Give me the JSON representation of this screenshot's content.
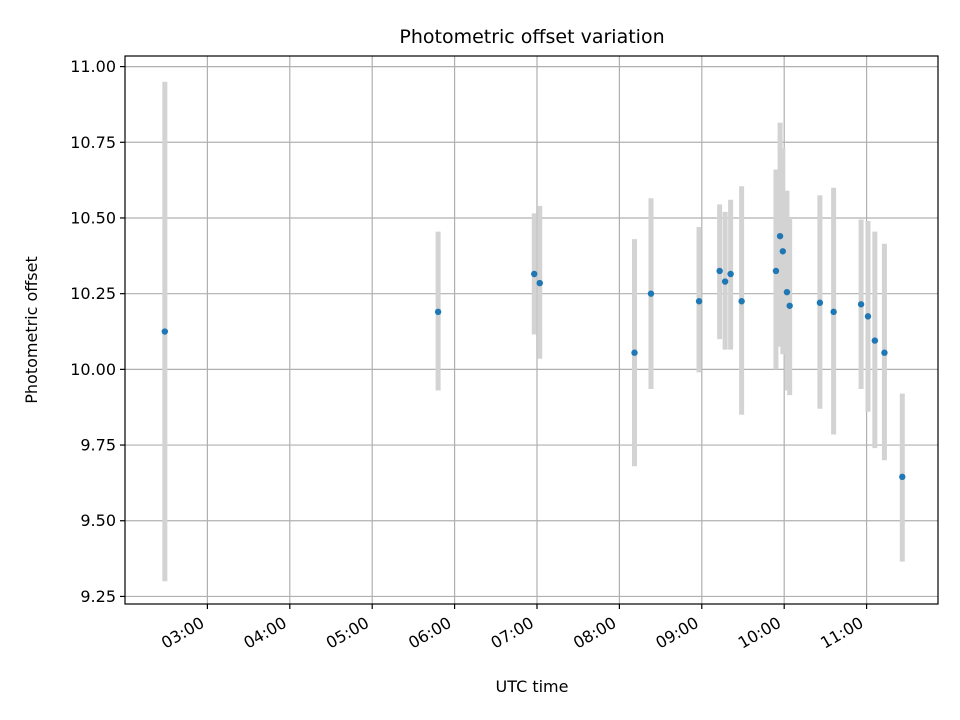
{
  "chart_data": {
    "type": "scatter",
    "title": "Photometric offset variation",
    "xlabel": "UTC time",
    "ylabel": "Photometric offset",
    "x_axis_type": "time",
    "xlim": [
      "02:00",
      "11:52"
    ],
    "ylim": [
      9.225,
      11.035
    ],
    "grid": true,
    "x_ticks": [
      "03:00",
      "04:00",
      "05:00",
      "06:00",
      "07:00",
      "08:00",
      "09:00",
      "10:00",
      "11:00"
    ],
    "y_ticks": [
      "9.25",
      "9.50",
      "9.75",
      "10.00",
      "10.25",
      "10.50",
      "10.75",
      "11.00"
    ],
    "colors": {
      "point": "#1f77b4",
      "errorbar": "#d3d3d3",
      "grid": "#b0b0b0"
    },
    "series": [
      {
        "points": [
          {
            "x": "02:29",
            "y": 10.125,
            "ylow": 9.3,
            "yhigh": 10.95
          },
          {
            "x": "05:48",
            "y": 10.19,
            "ylow": 9.93,
            "yhigh": 10.455
          },
          {
            "x": "06:58",
            "y": 10.315,
            "ylow": 10.115,
            "yhigh": 10.515
          },
          {
            "x": "07:02",
            "y": 10.285,
            "ylow": 10.035,
            "yhigh": 10.54
          },
          {
            "x": "08:11",
            "y": 10.055,
            "ylow": 9.68,
            "yhigh": 10.43
          },
          {
            "x": "08:23",
            "y": 10.25,
            "ylow": 9.935,
            "yhigh": 10.565
          },
          {
            "x": "08:58",
            "y": 10.225,
            "ylow": 9.99,
            "yhigh": 10.47
          },
          {
            "x": "09:13",
            "y": 10.325,
            "ylow": 10.1,
            "yhigh": 10.545
          },
          {
            "x": "09:17",
            "y": 10.29,
            "ylow": 10.065,
            "yhigh": 10.52
          },
          {
            "x": "09:21",
            "y": 10.315,
            "ylow": 10.065,
            "yhigh": 10.56
          },
          {
            "x": "09:29",
            "y": 10.225,
            "ylow": 9.85,
            "yhigh": 10.605
          },
          {
            "x": "09:54",
            "y": 10.325,
            "ylow": 10.0,
            "yhigh": 10.66
          },
          {
            "x": "09:57",
            "y": 10.44,
            "ylow": 10.075,
            "yhigh": 10.815
          },
          {
            "x": "09:59",
            "y": 10.39,
            "ylow": 10.05,
            "yhigh": 10.73
          },
          {
            "x": "10:02",
            "y": 10.255,
            "ylow": 9.93,
            "yhigh": 10.59
          },
          {
            "x": "10:04",
            "y": 10.21,
            "ylow": 9.915,
            "yhigh": 10.5
          },
          {
            "x": "10:26",
            "y": 10.22,
            "ylow": 9.87,
            "yhigh": 10.575
          },
          {
            "x": "10:36",
            "y": 10.19,
            "ylow": 9.785,
            "yhigh": 10.6
          },
          {
            "x": "10:56",
            "y": 10.215,
            "ylow": 9.935,
            "yhigh": 10.495
          },
          {
            "x": "11:01",
            "y": 10.175,
            "ylow": 9.86,
            "yhigh": 10.49
          },
          {
            "x": "11:06",
            "y": 10.095,
            "ylow": 9.74,
            "yhigh": 10.455
          },
          {
            "x": "11:13",
            "y": 10.055,
            "ylow": 9.7,
            "yhigh": 10.415
          },
          {
            "x": "11:26",
            "y": 9.645,
            "ylow": 9.365,
            "yhigh": 9.92
          }
        ]
      }
    ]
  }
}
